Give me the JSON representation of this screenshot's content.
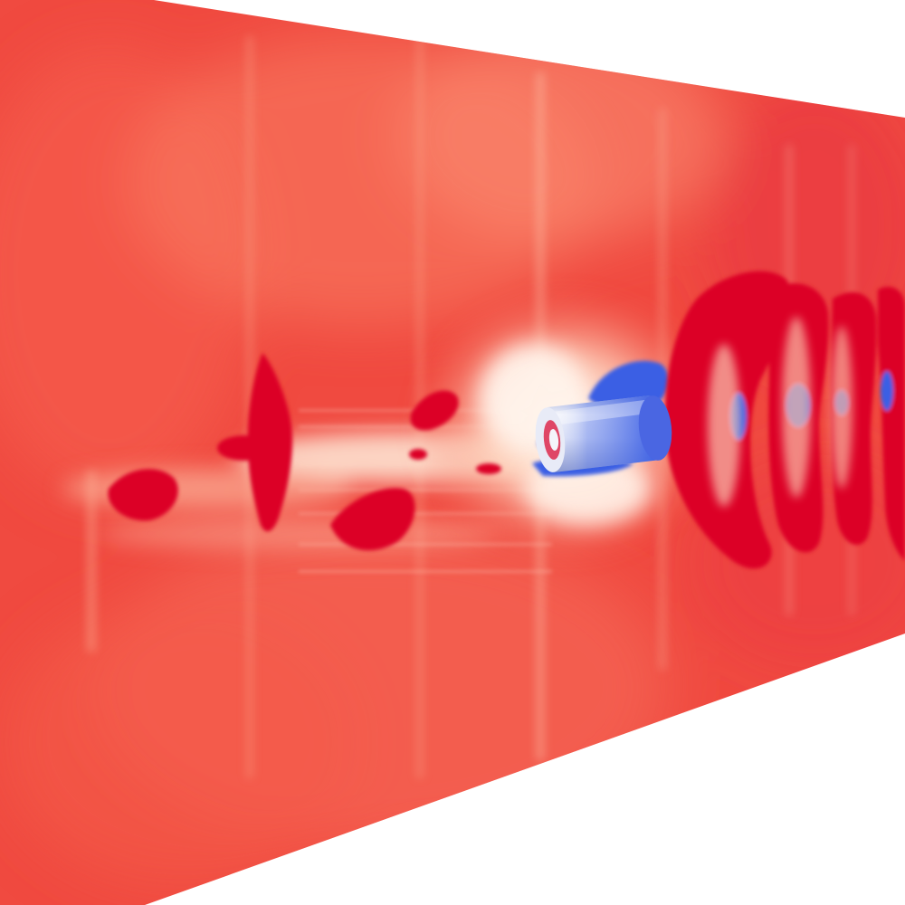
{
  "scene": {
    "background_color": "#ffffff",
    "colormap": {
      "name": "coolwarm",
      "high": "#dc0028",
      "mid_high": "#f4584a",
      "mid": "#fff4e8",
      "low": "#3a5ee4"
    },
    "plane_base_color": "#f04a40",
    "cylinder_colors": {
      "body": "#5b7bea",
      "light": "#f2f4fb",
      "cap": "#4a66e2"
    }
  }
}
